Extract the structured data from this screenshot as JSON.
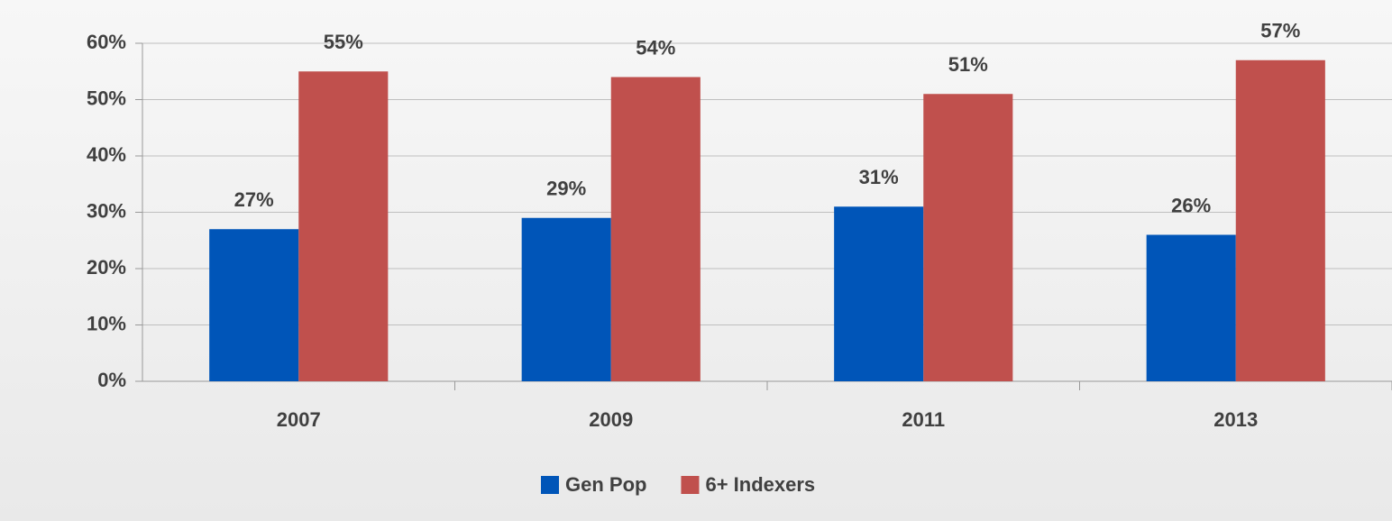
{
  "chart_data": {
    "type": "bar",
    "categories": [
      "2007",
      "2009",
      "2011",
      "2013"
    ],
    "series": [
      {
        "name": "Gen Pop",
        "color": "#0055b8",
        "values": [
          27,
          29,
          31,
          26
        ],
        "value_labels": [
          "27%",
          "29%",
          "31%",
          "26%"
        ]
      },
      {
        "name": "6+ Indexers",
        "color": "#c0504d",
        "values": [
          55,
          54,
          51,
          57
        ],
        "value_labels": [
          "55%",
          "54%",
          "51%",
          "57%"
        ]
      }
    ],
    "ylim": [
      0,
      60
    ],
    "yticks": [
      {
        "value": 0,
        "label": "0%"
      },
      {
        "value": 10,
        "label": "10%"
      },
      {
        "value": 20,
        "label": "20%"
      },
      {
        "value": 30,
        "label": "30%"
      },
      {
        "value": 40,
        "label": "40%"
      },
      {
        "value": 50,
        "label": "50%"
      },
      {
        "value": 60,
        "label": "60%"
      }
    ],
    "grid": true,
    "legend": "bottom"
  }
}
